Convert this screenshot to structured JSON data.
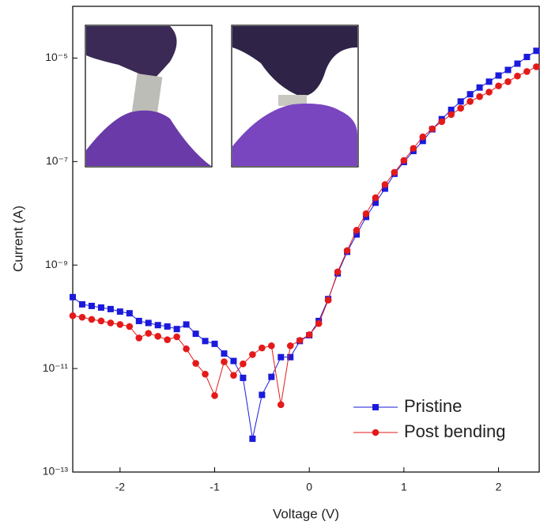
{
  "chart_data": {
    "type": "line",
    "x_label": "Voltage (V)",
    "y_label": "Current (A)",
    "x": [
      -2.5,
      -2.4,
      -2.3,
      -2.2,
      -2.1,
      -2.0,
      -1.9,
      -1.8,
      -1.7,
      -1.6,
      -1.5,
      -1.4,
      -1.3,
      -1.2,
      -1.1,
      -1.0,
      -0.9,
      -0.8,
      -0.7,
      -0.6,
      -0.5,
      -0.4,
      -0.3,
      -0.2,
      -0.1,
      0.0,
      0.1,
      0.2,
      0.3,
      0.4,
      0.5,
      0.6,
      0.7,
      0.8,
      0.9,
      1.0,
      1.1,
      1.2,
      1.3,
      1.4,
      1.5,
      1.6,
      1.7,
      1.8,
      1.9,
      2.0,
      2.1,
      2.2,
      2.3,
      2.4
    ],
    "series": [
      {
        "name": "Pristine",
        "color": "#1a1adc",
        "marker": "square",
        "values": [
          2.4e-10,
          1.74e-10,
          1.62e-10,
          1.51e-10,
          1.41e-10,
          1.26e-10,
          1.17e-10,
          8.3e-11,
          7.6e-11,
          6.9e-11,
          6.5e-11,
          5.8e-11,
          7.1e-11,
          4.7e-11,
          3.4e-11,
          3e-11,
          1.95e-11,
          1.4e-11,
          6.6e-12,
          4.4e-13,
          3.1e-12,
          6.9e-12,
          1.66e-11,
          1.66e-11,
          3.4e-11,
          4.4e-11,
          8.3e-11,
          2.2e-10,
          6.9e-10,
          1.8e-09,
          3.9e-09,
          8.5e-09,
          1.6e-08,
          3e-08,
          5.8e-08,
          9.8e-08,
          1.6e-07,
          2.5e-07,
          4.2e-07,
          6.6e-07,
          1e-06,
          1.45e-06,
          2e-06,
          2.7e-06,
          3.5e-06,
          4.6e-06,
          5.9e-06,
          7.8e-06,
          1.05e-05,
          1.38e-05
        ]
      },
      {
        "name": "Post bending",
        "color": "#e41a1a",
        "marker": "circle",
        "values": [
          1.05e-10,
          9.8e-11,
          8.9e-11,
          8.3e-11,
          7.6e-11,
          7.1e-11,
          6.5e-11,
          3.9e-11,
          4.8e-11,
          4.2e-11,
          3.6e-11,
          4.1e-11,
          2.4e-11,
          1.26e-11,
          7.8e-12,
          3e-12,
          1.35e-11,
          7.4e-12,
          1.23e-11,
          1.86e-11,
          2.5e-11,
          2.75e-11,
          2e-12,
          2.75e-11,
          3.5e-11,
          4.5e-11,
          7.4e-11,
          2.1e-10,
          7.4e-10,
          1.9e-09,
          4.7e-09,
          9.8e-09,
          2e-08,
          3.6e-08,
          6.2e-08,
          1.05e-07,
          1.8e-07,
          3e-07,
          4.3e-07,
          5.9e-07,
          8.1e-07,
          1.07e-06,
          1.45e-06,
          1.8e-06,
          2.2e-06,
          2.9e-06,
          3.5e-06,
          4.5e-06,
          5.5e-06,
          6.8e-06
        ]
      }
    ],
    "xlim": [
      -2.5,
      2.43
    ],
    "xticks": [
      -2,
      -1,
      0,
      1,
      2
    ],
    "ylim": [
      1e-13,
      0.0001
    ],
    "ylog": true,
    "yticks": [
      {
        "value": 1e-13,
        "label": "10⁻¹³"
      },
      {
        "value": 1e-11,
        "label": "10⁻¹¹"
      },
      {
        "value": 1e-09,
        "label": "10⁻⁹"
      },
      {
        "value": 1e-07,
        "label": "10⁻⁷"
      },
      {
        "value": 1e-05,
        "label": "10⁻⁵"
      }
    ],
    "grid": false,
    "legend_position": "lower right"
  }
}
